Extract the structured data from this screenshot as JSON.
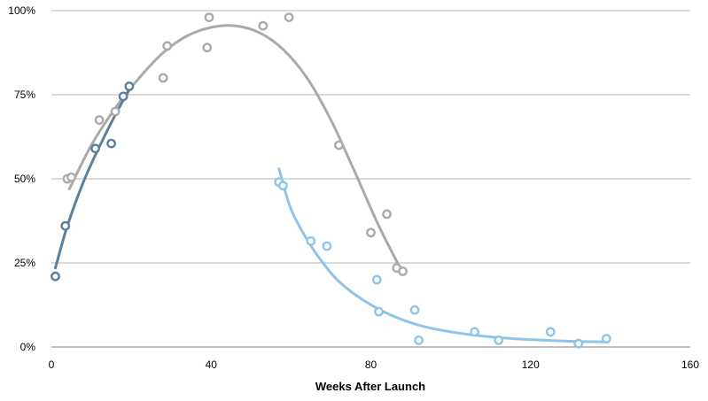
{
  "chart_data": {
    "type": "scatter",
    "title": "",
    "xlabel": "Weeks After Launch",
    "ylabel": "",
    "xlim": [
      0,
      160
    ],
    "ylim": [
      0,
      100
    ],
    "x_ticks": [
      {
        "value": 0,
        "label": "0"
      },
      {
        "value": 40,
        "label": "40"
      },
      {
        "value": 80,
        "label": "80"
      },
      {
        "value": 120,
        "label": "120"
      },
      {
        "value": 160,
        "label": "160"
      }
    ],
    "y_ticks": [
      {
        "value": 0,
        "label": "0%"
      },
      {
        "value": 25,
        "label": "25%"
      },
      {
        "value": 50,
        "label": "50%"
      },
      {
        "value": 75,
        "label": "75%"
      },
      {
        "value": 100,
        "label": "100%"
      }
    ],
    "grid": "horizontal",
    "legend": "none",
    "series": [
      {
        "color": "#aaaaaa",
        "points": [
          {
            "x": 4,
            "y": 50
          },
          {
            "x": 5,
            "y": 50.5
          },
          {
            "x": 12,
            "y": 67.5
          },
          {
            "x": 16,
            "y": 70
          },
          {
            "x": 28,
            "y": 80
          },
          {
            "x": 29,
            "y": 89.5
          },
          {
            "x": 39,
            "y": 89
          },
          {
            "x": 39.5,
            "y": 98
          },
          {
            "x": 53,
            "y": 95.5
          },
          {
            "x": 59.5,
            "y": 98
          },
          {
            "x": 72,
            "y": 60
          },
          {
            "x": 80,
            "y": 34
          },
          {
            "x": 84,
            "y": 39.5
          },
          {
            "x": 86.5,
            "y": 23.5
          },
          {
            "x": 88,
            "y": 22.5
          }
        ],
        "trend": [
          {
            "x": 4.5,
            "y": 47
          },
          {
            "x": 10,
            "y": 60
          },
          {
            "x": 16,
            "y": 71
          },
          {
            "x": 22,
            "y": 80
          },
          {
            "x": 28,
            "y": 87.5
          },
          {
            "x": 34,
            "y": 92.5
          },
          {
            "x": 40,
            "y": 95
          },
          {
            "x": 46,
            "y": 95.5
          },
          {
            "x": 52,
            "y": 93.5
          },
          {
            "x": 58,
            "y": 88.5
          },
          {
            "x": 64,
            "y": 80
          },
          {
            "x": 70,
            "y": 67.5
          },
          {
            "x": 76,
            "y": 52
          },
          {
            "x": 82,
            "y": 36
          },
          {
            "x": 88,
            "y": 22
          }
        ]
      },
      {
        "color": "#5c7f9e",
        "points": [
          {
            "x": 1,
            "y": 21
          },
          {
            "x": 3.5,
            "y": 36
          },
          {
            "x": 11,
            "y": 59
          },
          {
            "x": 15,
            "y": 60.5
          },
          {
            "x": 18,
            "y": 74.5
          },
          {
            "x": 19.5,
            "y": 77.5
          }
        ],
        "trend": [
          {
            "x": 1,
            "y": 23.5
          },
          {
            "x": 4,
            "y": 36
          },
          {
            "x": 8,
            "y": 49
          },
          {
            "x": 12,
            "y": 59.5
          },
          {
            "x": 16,
            "y": 69
          },
          {
            "x": 20,
            "y": 77.5
          }
        ]
      },
      {
        "color": "#8ec4ea",
        "points": [
          {
            "x": 57,
            "y": 49
          },
          {
            "x": 58,
            "y": 48
          },
          {
            "x": 65,
            "y": 31.5
          },
          {
            "x": 69,
            "y": 30
          },
          {
            "x": 81.5,
            "y": 20
          },
          {
            "x": 82,
            "y": 10.5
          },
          {
            "x": 91,
            "y": 11
          },
          {
            "x": 92,
            "y": 2
          },
          {
            "x": 106,
            "y": 4.5
          },
          {
            "x": 112,
            "y": 2
          },
          {
            "x": 125,
            "y": 4.5
          },
          {
            "x": 132,
            "y": 1
          },
          {
            "x": 139,
            "y": 2.5
          }
        ],
        "trend": [
          {
            "x": 57,
            "y": 53
          },
          {
            "x": 60,
            "y": 41
          },
          {
            "x": 64,
            "y": 32
          },
          {
            "x": 68,
            "y": 25
          },
          {
            "x": 72,
            "y": 19.5
          },
          {
            "x": 78,
            "y": 14
          },
          {
            "x": 85,
            "y": 9.5
          },
          {
            "x": 92,
            "y": 6.5
          },
          {
            "x": 100,
            "y": 4.5
          },
          {
            "x": 110,
            "y": 3
          },
          {
            "x": 120,
            "y": 2.2
          },
          {
            "x": 130,
            "y": 1.7
          },
          {
            "x": 139,
            "y": 1.5
          }
        ]
      }
    ]
  }
}
